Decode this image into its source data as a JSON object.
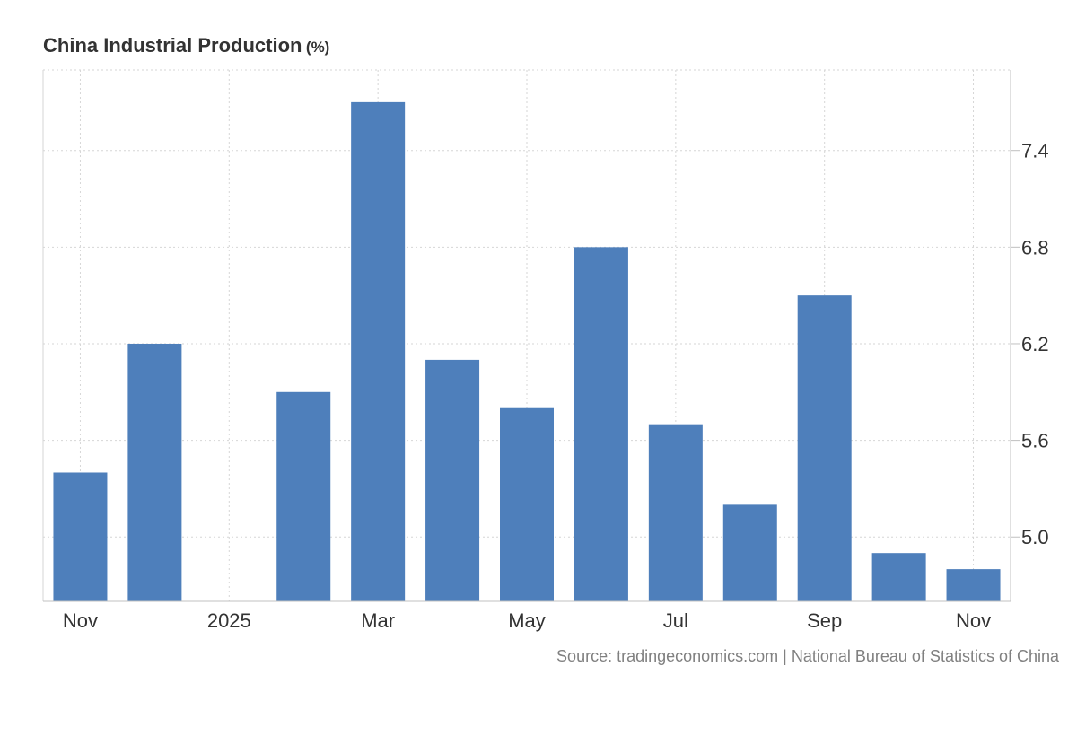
{
  "header": {
    "title": "China Industrial Production",
    "unit": "(%)"
  },
  "source": "Source: tradingeconomics.com | National Bureau of Statistics of China",
  "colors": {
    "bar": "#4e7fbb",
    "grid": "#d6d6d6",
    "axis": "#c0c0c0",
    "text": "#333333"
  },
  "chart_data": {
    "type": "bar",
    "title": "China Industrial Production",
    "unit": "%",
    "categories": [
      "2024-11",
      "2024-12",
      "2025-01",
      "2025-02",
      "2025-03",
      "2025-04",
      "2025-05",
      "2025-06",
      "2025-07",
      "2025-08",
      "2025-09",
      "2025-10",
      "2025-11"
    ],
    "values": [
      5.4,
      6.2,
      null,
      5.9,
      7.7,
      6.1,
      5.8,
      6.8,
      5.7,
      5.2,
      6.5,
      4.9,
      4.8
    ],
    "xtick_labels": [
      {
        "category": "2024-11",
        "label": "Nov"
      },
      {
        "category": "2025-01",
        "label": "2025"
      },
      {
        "category": "2025-03",
        "label": "Mar"
      },
      {
        "category": "2025-05",
        "label": "May"
      },
      {
        "category": "2025-07",
        "label": "Jul"
      },
      {
        "category": "2025-09",
        "label": "Sep"
      },
      {
        "category": "2025-11",
        "label": "Nov"
      }
    ],
    "yticks": [
      5.0,
      5.6,
      6.2,
      6.8,
      7.4
    ],
    "ytick_labels": [
      "5.0",
      "5.6",
      "6.2",
      "6.8",
      "7.4"
    ],
    "ylim": [
      4.6,
      7.9
    ],
    "grid": true,
    "yaxis_position": "right"
  }
}
